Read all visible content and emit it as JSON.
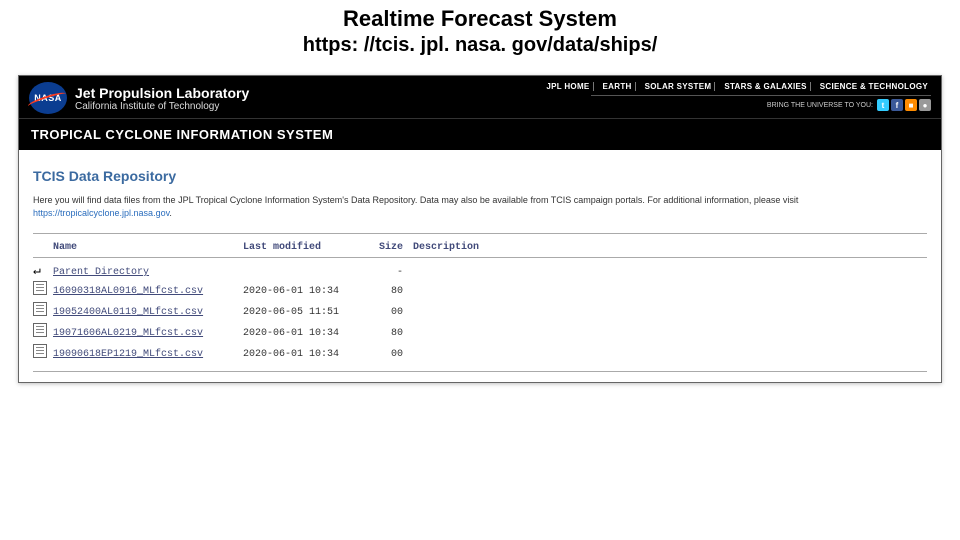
{
  "slide": {
    "title_line1": "Realtime Forecast System",
    "title_line2": "https: //tcis. jpl. nasa. gov/data/ships/"
  },
  "header": {
    "logo_text": "NASA",
    "jpl_line1": "Jet Propulsion Laboratory",
    "jpl_line2": "California Institute of Technology",
    "nav_items": [
      "JPL HOME",
      "EARTH",
      "SOLAR SYSTEM",
      "STARS & GALAXIES",
      "SCIENCE & TECHNOLOGY"
    ],
    "bring_text": "BRING THE UNIVERSE TO YOU:",
    "social": [
      {
        "name": "twitter-icon",
        "glyph": "t",
        "bg": "#33ccff"
      },
      {
        "name": "facebook-icon",
        "glyph": "f",
        "bg": "#3b5998"
      },
      {
        "name": "rss-icon",
        "glyph": "■",
        "bg": "#ff8c00"
      },
      {
        "name": "podcast-icon",
        "glyph": "●",
        "bg": "#999999"
      }
    ]
  },
  "system_bar": "TROPICAL CYCLONE INFORMATION SYSTEM",
  "repo": {
    "title": "TCIS Data Repository",
    "desc_prefix": "Here you will find data files from the JPL Tropical Cyclone Information System's Data Repository. Data may also be available from TCIS campaign portals. For additional information, please visit ",
    "desc_link": "https://tropicalcyclone.jpl.nasa.gov",
    "desc_suffix": "."
  },
  "listing": {
    "columns": {
      "name": "Name",
      "modified": "Last modified",
      "size": "Size",
      "desc": "Description"
    },
    "parent_label": "Parent Directory",
    "rows": [
      {
        "name": "16090318AL0916_MLfcst.csv",
        "modified": "2020-06-01 10:34",
        "size": "80"
      },
      {
        "name": "19052400AL0119_MLfcst.csv",
        "modified": "2020-06-05 11:51",
        "size": "00"
      },
      {
        "name": "19071606AL0219_MLfcst.csv",
        "modified": "2020-06-01 10:34",
        "size": "80"
      },
      {
        "name": "19090618EP1219_MLfcst.csv",
        "modified": "2020-06-01 10:34",
        "size": "00"
      }
    ]
  },
  "colors": {
    "link": "#414a7a",
    "header_bg": "#000000",
    "repo_title": "#3b6aa0"
  }
}
